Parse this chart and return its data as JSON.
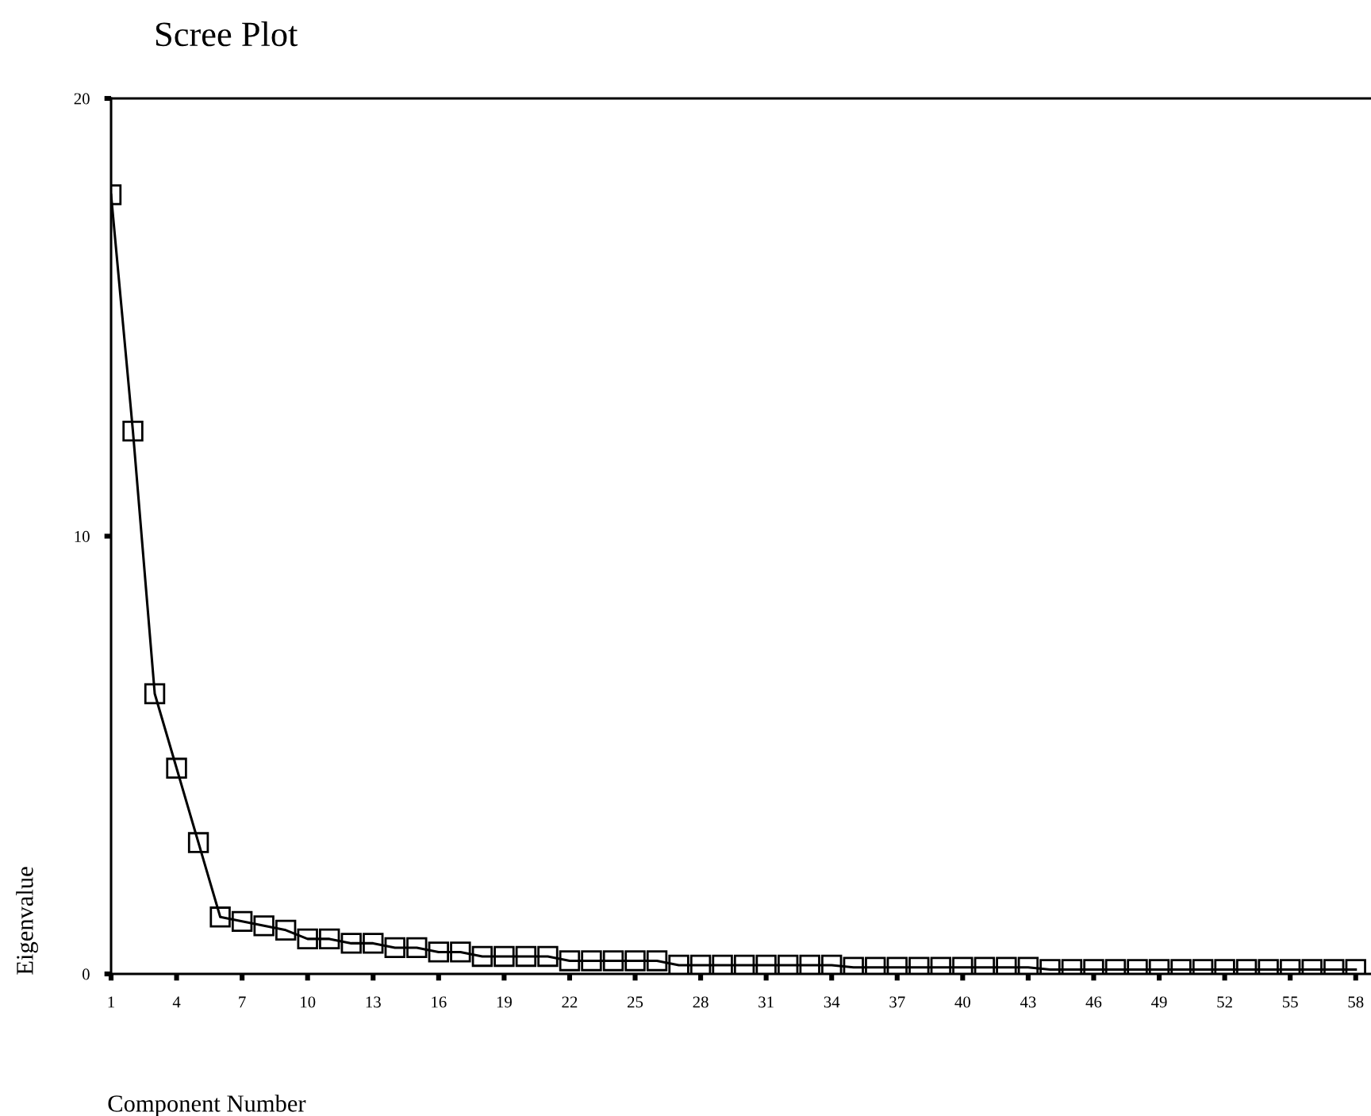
{
  "chart_data": {
    "type": "line",
    "title": "Scree Plot",
    "xlabel": "Component Number",
    "ylabel": "Eigenvalue",
    "x": [
      1,
      2,
      3,
      4,
      5,
      6,
      7,
      8,
      9,
      10,
      11,
      12,
      13,
      14,
      15,
      16,
      17,
      18,
      19,
      20,
      21,
      22,
      23,
      24,
      25,
      26,
      27,
      28,
      29,
      30,
      31,
      32,
      33,
      34,
      35,
      36,
      37,
      38,
      39,
      40,
      41,
      42,
      43,
      44,
      45,
      46,
      47,
      48,
      49,
      50,
      51,
      52,
      53,
      54,
      55,
      56,
      57,
      58
    ],
    "series": [
      {
        "color": "#000000",
        "values": [
          17.8,
          12.4,
          6.4,
          4.7,
          3.0,
          1.3,
          1.2,
          1.1,
          1.0,
          0.8,
          0.8,
          0.7,
          0.7,
          0.6,
          0.6,
          0.5,
          0.5,
          0.4,
          0.4,
          0.4,
          0.4,
          0.3,
          0.3,
          0.3,
          0.3,
          0.3,
          0.2,
          0.2,
          0.2,
          0.2,
          0.2,
          0.2,
          0.2,
          0.2,
          0.15,
          0.15,
          0.15,
          0.15,
          0.15,
          0.15,
          0.15,
          0.15,
          0.15,
          0.1,
          0.1,
          0.1,
          0.1,
          0.1,
          0.1,
          0.1,
          0.1,
          0.1,
          0.1,
          0.1,
          0.1,
          0.1,
          0.1,
          0.1
        ]
      }
    ],
    "xlim": [
      1,
      58.7
    ],
    "ylim": [
      0,
      20
    ],
    "xticks": [
      1,
      4,
      7,
      10,
      13,
      16,
      19,
      22,
      25,
      28,
      31,
      34,
      37,
      40,
      43,
      46,
      49,
      52,
      55,
      58
    ],
    "yticks": [
      0,
      10,
      20
    ],
    "marker": "square",
    "line_style": "solid",
    "grid": false
  }
}
